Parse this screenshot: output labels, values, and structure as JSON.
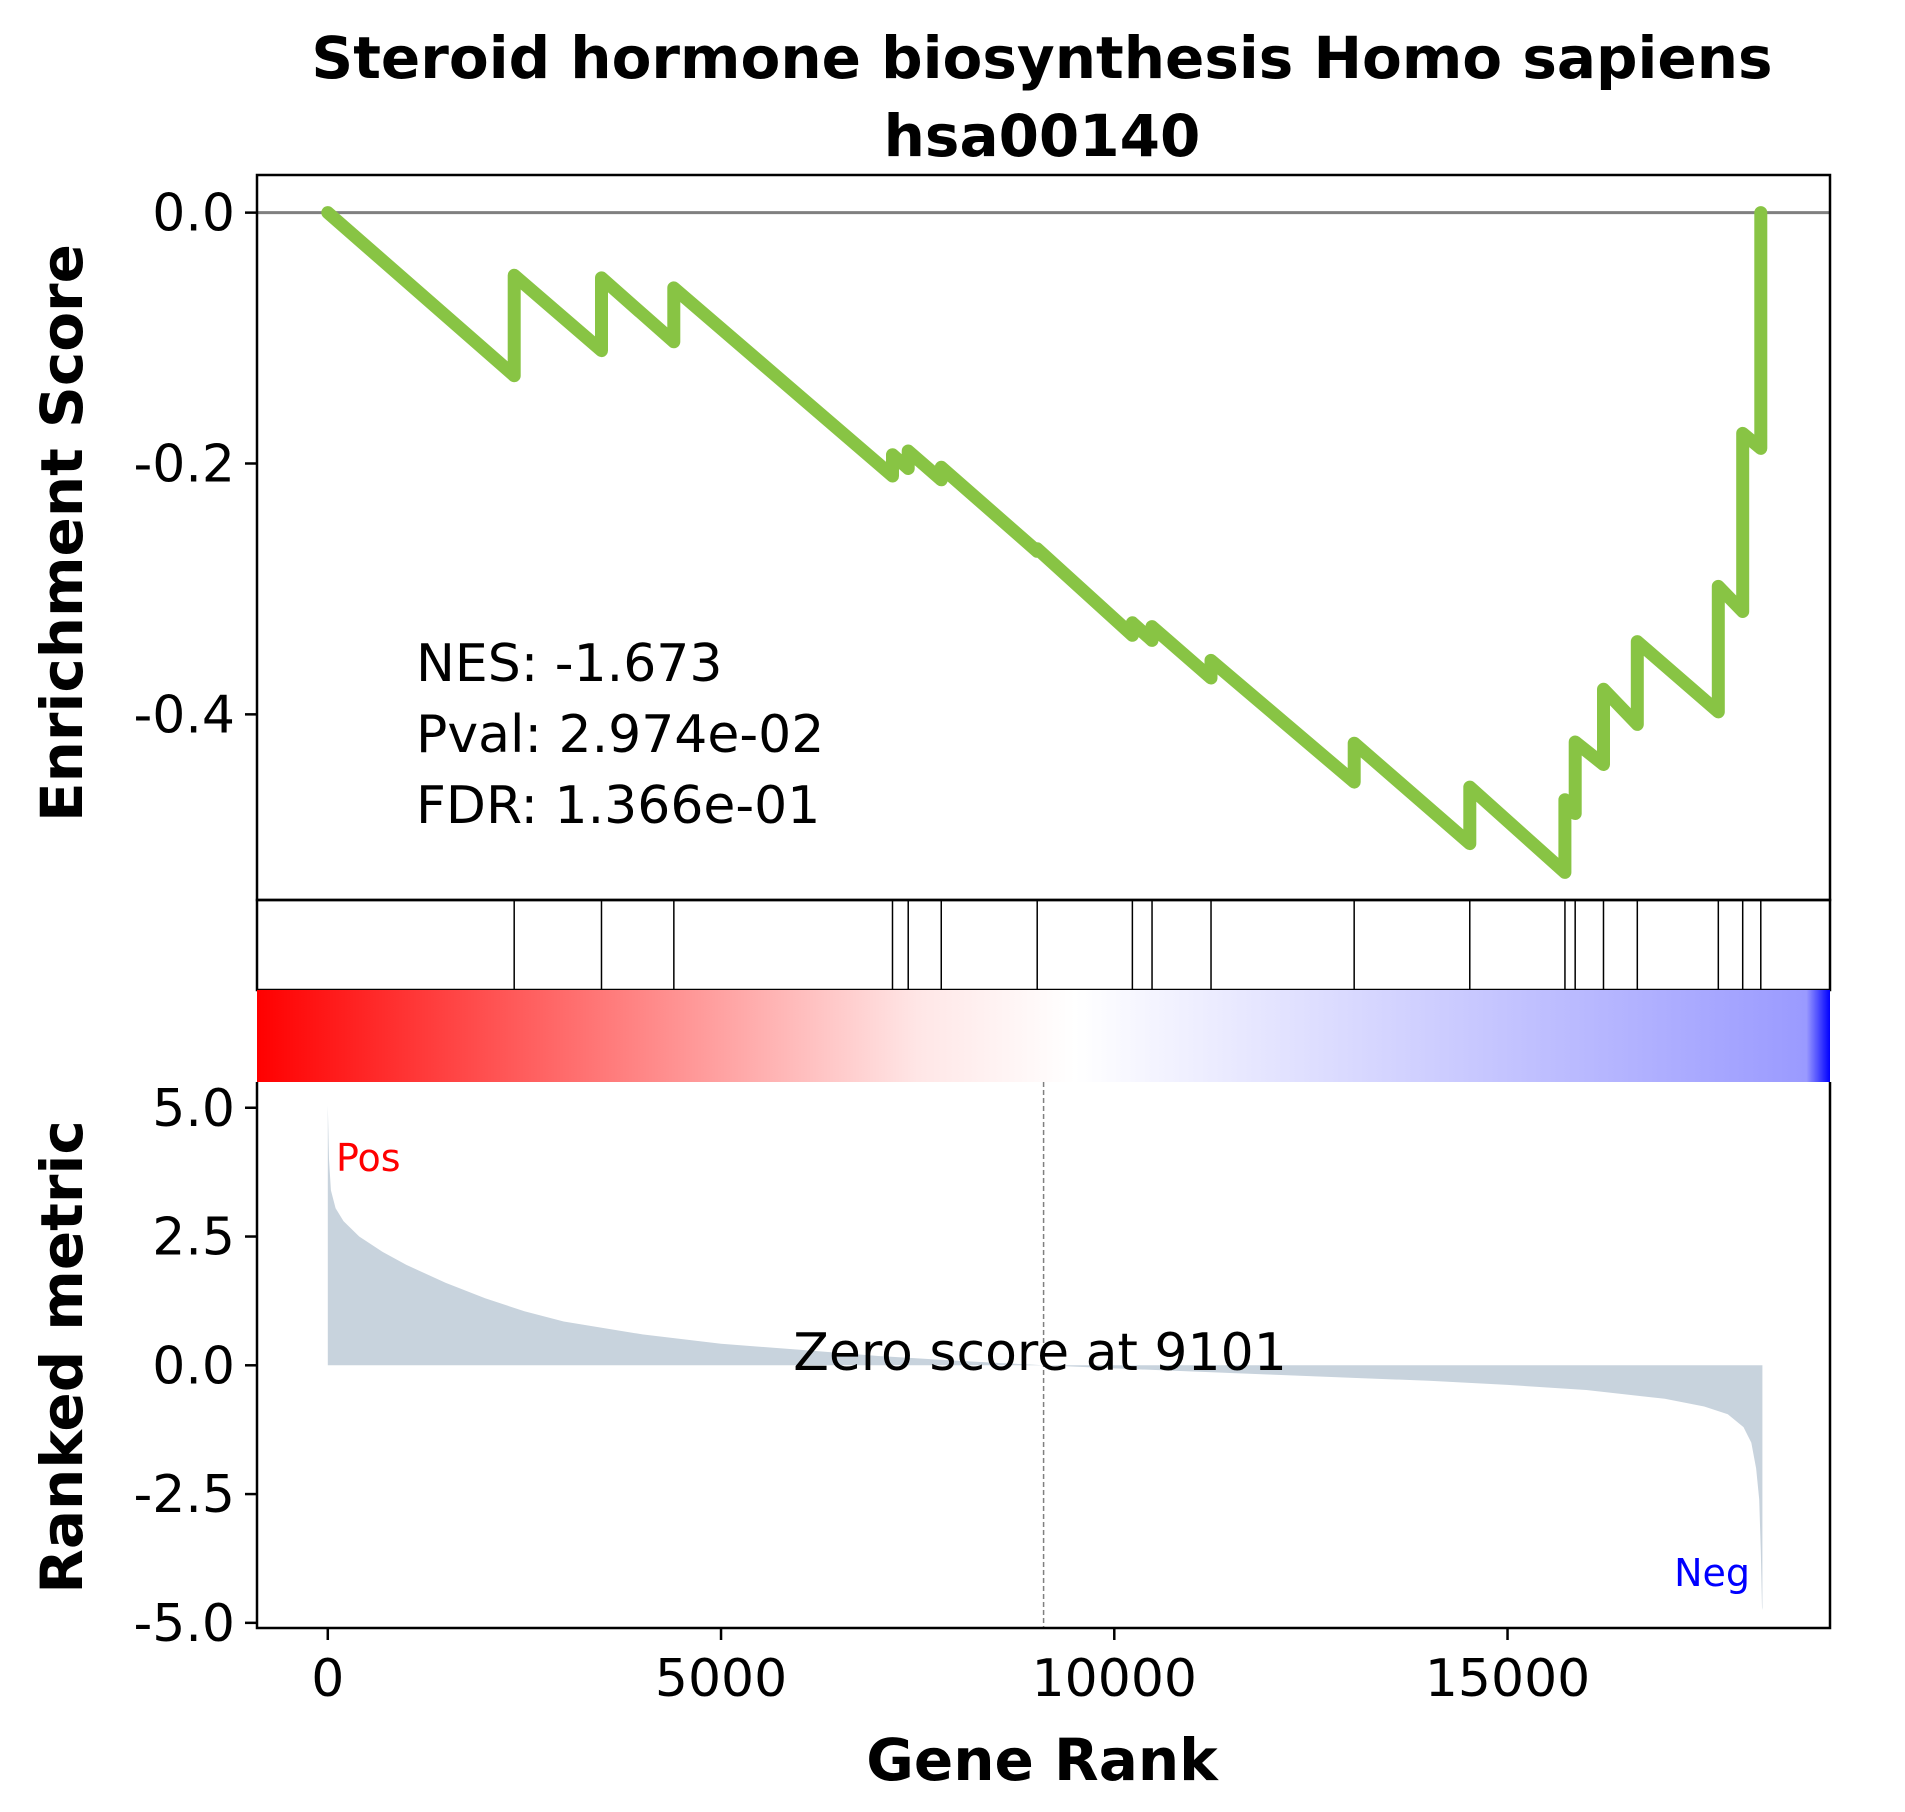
{
  "chart_data": {
    "type": "line",
    "title_line1": "Steroid hormone biosynthesis Homo sapiens",
    "title_line2": "hsa00140",
    "ylabel_top": "Enrichment Score",
    "ylabel_bottom": "Ranked metric",
    "xlabel": "Gene Rank",
    "xlim": [
      -900,
      19100
    ],
    "ylim_top": [
      -0.548,
      0.03
    ],
    "ylim_bottom": [
      -5.1,
      5.5
    ],
    "x_ticks": [
      0,
      5000,
      10000,
      15000
    ],
    "x_tick_labels": [
      "0",
      "5000",
      "10000",
      "15000"
    ],
    "y_ticks_top": [
      0.0,
      -0.2,
      -0.4
    ],
    "y_tick_labels_top": [
      "0.0",
      "-0.2",
      "-0.4"
    ],
    "y_ticks_bottom": [
      5.0,
      2.5,
      0.0,
      -2.5,
      -5.0
    ],
    "y_tick_labels_bottom": [
      "5.0",
      "2.5",
      "0.0",
      "-2.5",
      "-5.0"
    ],
    "stats": {
      "nes": "NES: -1.673",
      "pval": "Pval: 2.974e-02",
      "fdr": "FDR: 1.366e-01"
    },
    "pos_label": "Pos",
    "neg_label": "Neg",
    "zero_score_label": "Zero score at 9101",
    "zero_score_rank": 9101,
    "total_genes": 18240,
    "hit_ranks": [
      2370,
      3480,
      4400,
      7180,
      7380,
      7800,
      9020,
      10230,
      10480,
      11230,
      13050,
      14520,
      15730,
      15860,
      16220,
      16650,
      17680,
      17990,
      18220
    ],
    "es_curve": [
      [
        0,
        0.0
      ],
      [
        2370,
        -0.13
      ],
      [
        2370,
        -0.05
      ],
      [
        3480,
        -0.11
      ],
      [
        3480,
        -0.052
      ],
      [
        4400,
        -0.103
      ],
      [
        4400,
        -0.06
      ],
      [
        7180,
        -0.21
      ],
      [
        7180,
        -0.193
      ],
      [
        7380,
        -0.204
      ],
      [
        7380,
        -0.19
      ],
      [
        7800,
        -0.213
      ],
      [
        7800,
        -0.203
      ],
      [
        9020,
        -0.27
      ],
      [
        9020,
        -0.268
      ],
      [
        10230,
        -0.337
      ],
      [
        10230,
        -0.327
      ],
      [
        10480,
        -0.341
      ],
      [
        10480,
        -0.33
      ],
      [
        11230,
        -0.371
      ],
      [
        11230,
        -0.357
      ],
      [
        13050,
        -0.454
      ],
      [
        13050,
        -0.423
      ],
      [
        14520,
        -0.503
      ],
      [
        14520,
        -0.458
      ],
      [
        15730,
        -0.526
      ],
      [
        15730,
        -0.468
      ],
      [
        15860,
        -0.479
      ],
      [
        15860,
        -0.422
      ],
      [
        16220,
        -0.44
      ],
      [
        16220,
        -0.38
      ],
      [
        16650,
        -0.408
      ],
      [
        16650,
        -0.342
      ],
      [
        17680,
        -0.398
      ],
      [
        17680,
        -0.298
      ],
      [
        17990,
        -0.318
      ],
      [
        17990,
        -0.176
      ],
      [
        18220,
        -0.188
      ],
      [
        18220,
        0.0
      ]
    ],
    "ranked_metric_curve": [
      [
        0,
        5.05
      ],
      [
        15,
        4.0
      ],
      [
        40,
        3.4
      ],
      [
        100,
        3.05
      ],
      [
        200,
        2.8
      ],
      [
        400,
        2.5
      ],
      [
        700,
        2.2
      ],
      [
        1000,
        1.95
      ],
      [
        1500,
        1.6
      ],
      [
        2000,
        1.3
      ],
      [
        2500,
        1.05
      ],
      [
        3000,
        0.85
      ],
      [
        4000,
        0.6
      ],
      [
        5000,
        0.42
      ],
      [
        6000,
        0.3
      ],
      [
        7000,
        0.18
      ],
      [
        8000,
        0.09
      ],
      [
        9101,
        0.0
      ],
      [
        10000,
        -0.06
      ],
      [
        11000,
        -0.12
      ],
      [
        12000,
        -0.18
      ],
      [
        13000,
        -0.24
      ],
      [
        14000,
        -0.3
      ],
      [
        15000,
        -0.38
      ],
      [
        16000,
        -0.48
      ],
      [
        17000,
        -0.65
      ],
      [
        17500,
        -0.8
      ],
      [
        17800,
        -0.95
      ],
      [
        18000,
        -1.2
      ],
      [
        18100,
        -1.5
      ],
      [
        18160,
        -2.0
      ],
      [
        18200,
        -2.6
      ],
      [
        18220,
        -3.6
      ],
      [
        18235,
        -4.7
      ],
      [
        18240,
        -4.75
      ]
    ],
    "colors": {
      "es_line": "#88c444",
      "zero_line": "#808080",
      "metric_fill": "#c8d3dd",
      "pos_label": "#ff0000",
      "neg_label": "#0000ff",
      "gradient_start": "#ff0000",
      "gradient_mid": "#ffffff",
      "gradient_end": "#0000ff"
    }
  }
}
